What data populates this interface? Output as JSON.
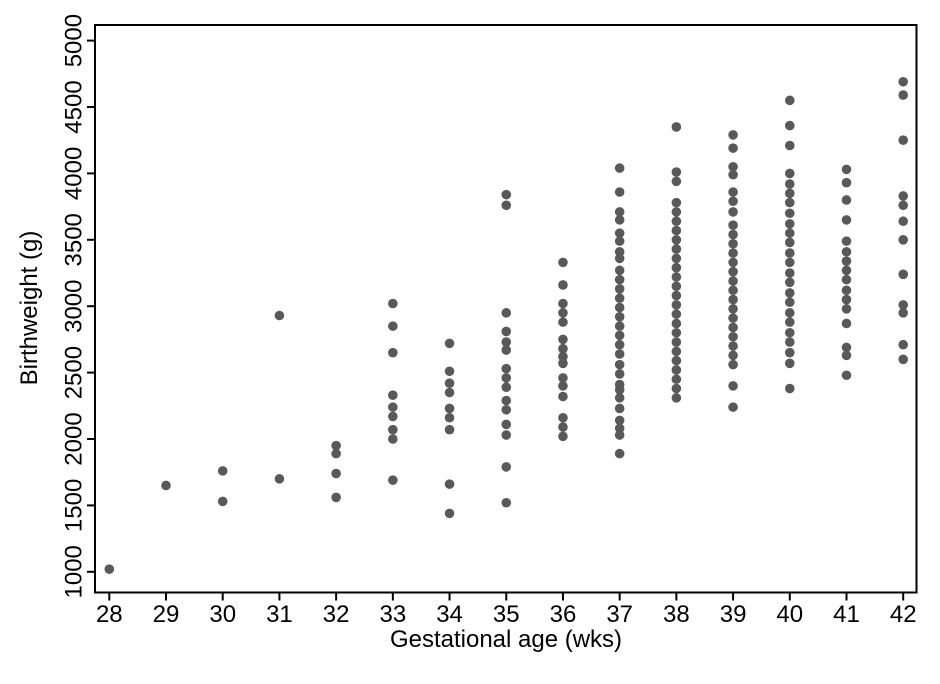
{
  "figure": {
    "xlabel": "Gestational age (wks)",
    "ylabel": "Birthweight (g)"
  },
  "chart_data": {
    "type": "scatter",
    "title": "",
    "xlabel": "Gestational age (wks)",
    "ylabel": "Birthweight (g)",
    "xlim": [
      27.75,
      42.25
    ],
    "ylim": [
      950,
      5120
    ],
    "x_ticks": [
      28,
      29,
      30,
      31,
      32,
      33,
      34,
      35,
      36,
      37,
      38,
      39,
      40,
      41,
      42
    ],
    "y_ticks": [
      1000,
      1500,
      2000,
      2500,
      3000,
      3500,
      4000,
      4500,
      5000
    ],
    "grid": "off",
    "legend": "none",
    "marker": "filled-circle",
    "marker_color": "#595959",
    "axis_color": "#000000",
    "background_color": "#ffffff",
    "points_by_week": [
      {
        "gestational_age_wks": 28,
        "birthweights_g": [
          1020
        ]
      },
      {
        "gestational_age_wks": 29,
        "birthweights_g": [
          1650
        ]
      },
      {
        "gestational_age_wks": 30,
        "birthweights_g": [
          1760,
          1530
        ]
      },
      {
        "gestational_age_wks": 31,
        "birthweights_g": [
          2930,
          1700
        ]
      },
      {
        "gestational_age_wks": 32,
        "birthweights_g": [
          1950,
          1890,
          1740,
          1560
        ]
      },
      {
        "gestational_age_wks": 33,
        "birthweights_g": [
          3020,
          2850,
          2650,
          2330,
          2240,
          2170,
          2070,
          2000,
          1690
        ]
      },
      {
        "gestational_age_wks": 34,
        "birthweights_g": [
          2720,
          2510,
          2420,
          2350,
          2230,
          2160,
          2070,
          1660,
          1440
        ]
      },
      {
        "gestational_age_wks": 35,
        "birthweights_g": [
          3840,
          3760,
          2950,
          2810,
          2730,
          2670,
          2530,
          2460,
          2390,
          2290,
          2220,
          2110,
          2030,
          1790,
          1520
        ]
      },
      {
        "gestational_age_wks": 36,
        "birthweights_g": [
          3330,
          3160,
          3020,
          2950,
          2880,
          2750,
          2680,
          2620,
          2570,
          2460,
          2400,
          2320,
          2160,
          2090,
          2020
        ]
      },
      {
        "gestational_age_wks": 37,
        "birthweights_g": [
          4040,
          3860,
          3710,
          3650,
          3550,
          3490,
          3410,
          3360,
          3270,
          3200,
          3130,
          3060,
          2990,
          2920,
          2850,
          2780,
          2710,
          2640,
          2560,
          2490,
          2410,
          2370,
          2310,
          2230,
          2140,
          2080,
          2030,
          1890
        ]
      },
      {
        "gestational_age_wks": 38,
        "birthweights_g": [
          4350,
          4010,
          3940,
          3780,
          3710,
          3640,
          3570,
          3500,
          3430,
          3360,
          3290,
          3220,
          3150,
          3080,
          3010,
          2940,
          2870,
          2800,
          2730,
          2660,
          2590,
          2520,
          2450,
          2380,
          2310
        ]
      },
      {
        "gestational_age_wks": 39,
        "birthweights_g": [
          4290,
          4190,
          4050,
          3990,
          3860,
          3790,
          3710,
          3610,
          3540,
          3470,
          3400,
          3330,
          3260,
          3190,
          3120,
          3050,
          2980,
          2910,
          2840,
          2770,
          2700,
          2630,
          2560,
          2400,
          2240
        ]
      },
      {
        "gestational_age_wks": 40,
        "birthweights_g": [
          4550,
          4360,
          4210,
          4000,
          3920,
          3850,
          3780,
          3700,
          3620,
          3550,
          3480,
          3400,
          3330,
          3250,
          3180,
          3100,
          3030,
          2950,
          2880,
          2800,
          2730,
          2650,
          2570,
          2380
        ]
      },
      {
        "gestational_age_wks": 41,
        "birthweights_g": [
          4030,
          3930,
          3800,
          3650,
          3490,
          3410,
          3340,
          3270,
          3200,
          3120,
          3050,
          2980,
          2870,
          2690,
          2630,
          2480
        ]
      },
      {
        "gestational_age_wks": 42,
        "birthweights_g": [
          4690,
          4590,
          4250,
          3830,
          3760,
          3640,
          3500,
          3240,
          3010,
          2950,
          2710,
          2600
        ]
      }
    ]
  }
}
